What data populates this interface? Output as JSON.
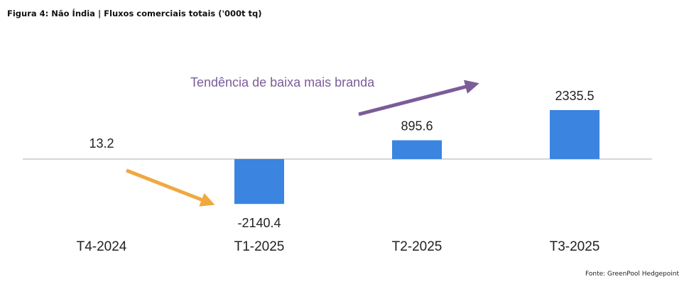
{
  "figure": {
    "title": "Figura 4: Não Índia | Fluxos comerciais totais ('000t tq)",
    "source": "Fonte: GreenPool Hedgepoint"
  },
  "chart_data": {
    "type": "bar",
    "categories": [
      "T4-2024",
      "T1-2025",
      "T2-2025",
      "T3-2025"
    ],
    "values": [
      13.2,
      -2140.4,
      895.6,
      2335.5
    ],
    "data_labels": [
      "13.2",
      "-2140.4",
      "895.6",
      "2335.5"
    ],
    "title": "",
    "xlabel": "",
    "ylabel": "",
    "ylim": [
      -2600,
      2600
    ],
    "grid": false,
    "legend": "none",
    "annotations": [
      {
        "text": "Tendência de baixa mais branda",
        "color": "#7B5C98"
      }
    ],
    "trend_arrows": [
      {
        "direction": "down",
        "color": "#F0A93E"
      },
      {
        "direction": "up",
        "color": "#7B5C98"
      }
    ],
    "colors": {
      "bar": "#3B84E0",
      "baseline": "#D6D6D6",
      "text": "#222222"
    }
  }
}
